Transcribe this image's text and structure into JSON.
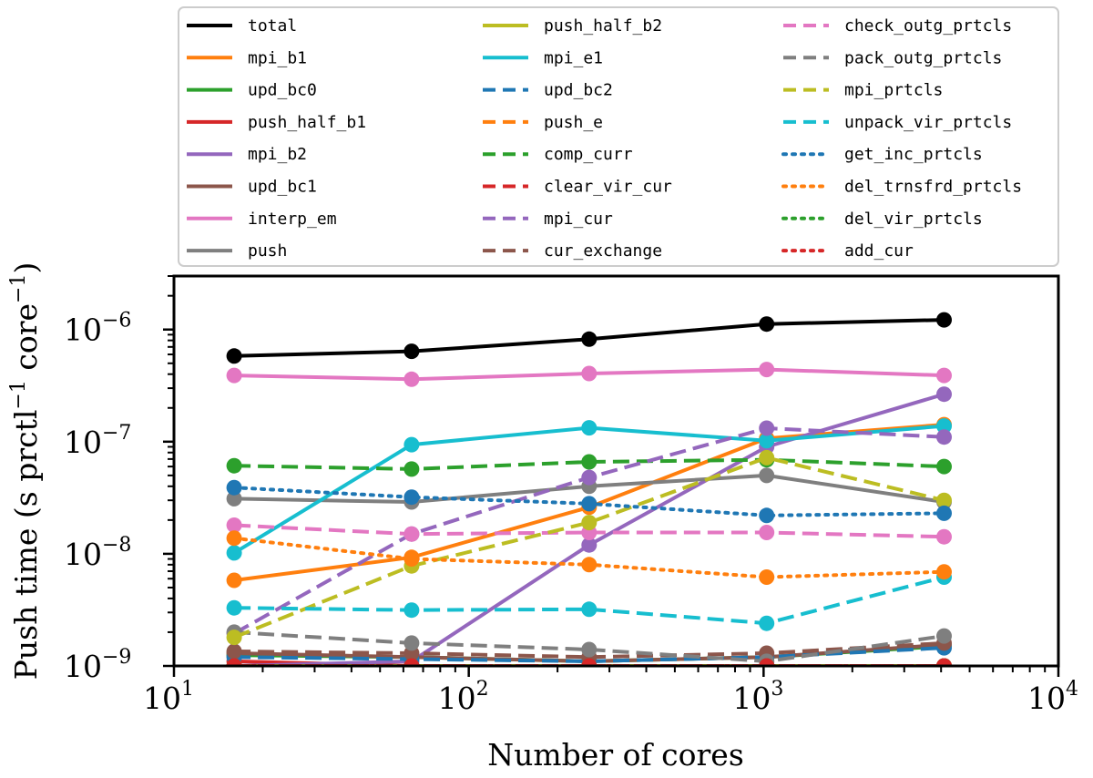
{
  "chart_data": {
    "type": "line",
    "xscale": "log",
    "yscale": "log",
    "xlabel": "Number of cores",
    "ylabel": "Push time (s prctl",
    "ylabel_exp1": "−1",
    "ylabel_mid": " core",
    "ylabel_exp2": "−1",
    "ylabel_end": ")",
    "xlim": [
      10,
      10000
    ],
    "ylim": [
      1e-09,
      3e-06
    ],
    "x_ticks": [
      {
        "value": 10,
        "base": "10",
        "exp": "1"
      },
      {
        "value": 100,
        "base": "10",
        "exp": "2"
      },
      {
        "value": 1000,
        "base": "10",
        "exp": "3"
      },
      {
        "value": 10000,
        "base": "10",
        "exp": "4"
      }
    ],
    "y_ticks": [
      {
        "value": 1e-09,
        "base": "10",
        "exp": "−9"
      },
      {
        "value": 1e-08,
        "base": "10",
        "exp": "−8"
      },
      {
        "value": 1e-07,
        "base": "10",
        "exp": "−7"
      },
      {
        "value": 1e-06,
        "base": "10",
        "exp": "−6"
      }
    ],
    "x": [
      16,
      64,
      256,
      1024,
      4096
    ],
    "legend_columns": 3,
    "series": [
      {
        "name": "total",
        "color": "#000000",
        "style": "solid",
        "values": [
          5.8e-07,
          6.4e-07,
          8.2e-07,
          1.12e-06,
          1.22e-06
        ]
      },
      {
        "name": "mpi_b1",
        "color": "#ff7f0e",
        "style": "solid",
        "values": [
          5.8e-09,
          9.3e-09,
          2.6e-08,
          1.07e-07,
          1.42e-07
        ]
      },
      {
        "name": "upd_bc0",
        "color": "#2ca02c",
        "style": "solid",
        "values": [
          1.25e-09,
          1.2e-09,
          1.1e-09,
          1.2e-09,
          1.5e-09
        ]
      },
      {
        "name": "push_half_b1",
        "color": "#d62728",
        "style": "solid",
        "values": [
          1.1e-09,
          1e-09,
          1e-09,
          1e-09,
          1e-09
        ]
      },
      {
        "name": "mpi_b2",
        "color": "#9467bd",
        "style": "solid",
        "values": [
          1e-09,
          1.1e-09,
          1.2e-08,
          9e-08,
          2.65e-07
        ]
      },
      {
        "name": "upd_bc1",
        "color": "#8c564b",
        "style": "solid",
        "values": [
          1.3e-09,
          1.2e-09,
          1.1e-09,
          1.2e-09,
          1.55e-09
        ]
      },
      {
        "name": "interp_em",
        "color": "#e377c2",
        "style": "solid",
        "values": [
          3.9e-07,
          3.6e-07,
          4.05e-07,
          4.4e-07,
          3.9e-07
        ]
      },
      {
        "name": "push",
        "color": "#7f7f7f",
        "style": "solid",
        "values": [
          3.1e-08,
          2.9e-08,
          4e-08,
          5e-08,
          2.9e-08
        ]
      },
      {
        "name": "push_half_b2",
        "color": "#bcbd22",
        "style": "solid",
        "values": [
          1e-09,
          1e-09,
          1e-09,
          1e-09,
          1e-09
        ]
      },
      {
        "name": "mpi_e1",
        "color": "#17becf",
        "style": "solid",
        "values": [
          1.02e-08,
          9.4e-08,
          1.33e-07,
          1.02e-07,
          1.38e-07
        ]
      },
      {
        "name": "upd_bc2",
        "color": "#1f77b4",
        "style": "dashed",
        "values": [
          1.2e-09,
          1.15e-09,
          1.1e-09,
          1.2e-09,
          1.45e-09
        ]
      },
      {
        "name": "push_e",
        "color": "#ff7f0e",
        "style": "dashed",
        "values": [
          1e-09,
          1e-09,
          1e-09,
          1e-09,
          1e-09
        ]
      },
      {
        "name": "comp_curr",
        "color": "#2ca02c",
        "style": "dashed",
        "values": [
          6.1e-08,
          5.7e-08,
          6.6e-08,
          6.9e-08,
          6e-08
        ]
      },
      {
        "name": "clear_vir_cur",
        "color": "#d62728",
        "style": "dashed",
        "values": [
          1e-09,
          1e-09,
          1e-09,
          1e-09,
          1e-09
        ]
      },
      {
        "name": "mpi_cur",
        "color": "#9467bd",
        "style": "dashed",
        "values": [
          1.95e-09,
          1.5e-08,
          4.8e-08,
          1.32e-07,
          1.1e-07
        ]
      },
      {
        "name": "cur_exchange",
        "color": "#8c564b",
        "style": "dashed",
        "values": [
          1.35e-09,
          1.3e-09,
          1.2e-09,
          1.3e-09,
          1.6e-09
        ]
      },
      {
        "name": "check_outg_prtcls",
        "color": "#e377c2",
        "style": "dashed",
        "values": [
          1.8e-08,
          1.5e-08,
          1.55e-08,
          1.55e-08,
          1.42e-08
        ]
      },
      {
        "name": "pack_outg_prtcls",
        "color": "#7f7f7f",
        "style": "dashed",
        "values": [
          2e-09,
          1.6e-09,
          1.4e-09,
          1.1e-09,
          1.85e-09
        ]
      },
      {
        "name": "mpi_prtcls",
        "color": "#bcbd22",
        "style": "dashed",
        "values": [
          1.8e-09,
          7.8e-09,
          1.9e-08,
          7.2e-08,
          3e-08
        ]
      },
      {
        "name": "unpack_vir_prtcls",
        "color": "#17becf",
        "style": "dashed",
        "values": [
          3.3e-09,
          3.15e-09,
          3.2e-09,
          2.4e-09,
          6.2e-09
        ]
      },
      {
        "name": "get_inc_prtcls",
        "color": "#1f77b4",
        "style": "dotted",
        "values": [
          3.9e-08,
          3.2e-08,
          2.8e-08,
          2.2e-08,
          2.3e-08
        ]
      },
      {
        "name": "del_trnsfrd_prtcls",
        "color": "#ff7f0e",
        "style": "dotted",
        "values": [
          1.38e-08,
          9e-09,
          8e-09,
          6.2e-09,
          6.9e-09
        ]
      },
      {
        "name": "del_vir_prtcls",
        "color": "#2ca02c",
        "style": "dotted",
        "values": [
          1e-09,
          1e-09,
          1e-09,
          1e-09,
          1e-09
        ]
      },
      {
        "name": "add_cur",
        "color": "#d62728",
        "style": "dotted",
        "values": [
          1e-09,
          1e-09,
          1e-09,
          1e-09,
          1e-09
        ]
      }
    ]
  }
}
